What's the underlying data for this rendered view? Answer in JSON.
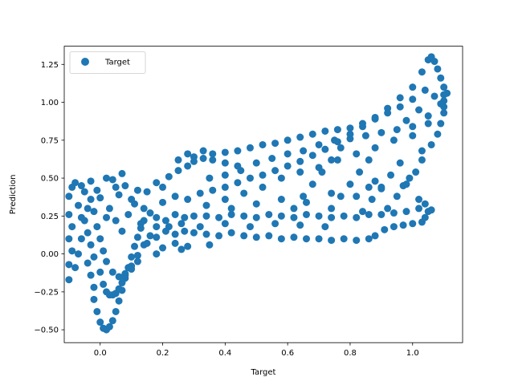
{
  "chart_data": {
    "type": "scatter",
    "title": "",
    "xlabel": "Target",
    "ylabel": "Prediction",
    "xlim": [
      -0.115,
      1.16
    ],
    "ylim": [
      -0.585,
      1.37
    ],
    "xticks": [
      0.0,
      0.2,
      0.4,
      0.6,
      0.8,
      1.0
    ],
    "xtick_labels": [
      "0.0",
      "0.2",
      "0.4",
      "0.6",
      "0.8",
      "1.0"
    ],
    "yticks": [
      -0.5,
      -0.25,
      0.0,
      0.25,
      0.5,
      0.75,
      1.0,
      1.25
    ],
    "ytick_labels": [
      "−0.50",
      "−0.25",
      "0.00",
      "0.25",
      "0.50",
      "0.75",
      "1.00",
      "1.25"
    ],
    "grid": false,
    "legend": {
      "position": "upper-left",
      "entries": [
        "Target"
      ]
    },
    "series": [
      {
        "name": "Target",
        "color": "#1f77b4",
        "points": [
          [
            -0.1,
            0.38
          ],
          [
            -0.09,
            0.44
          ],
          [
            -0.08,
            0.47
          ],
          [
            -0.06,
            0.45
          ],
          [
            -0.05,
            0.41
          ],
          [
            -0.03,
            0.48
          ],
          [
            -0.01,
            0.42
          ],
          [
            0.0,
            0.37
          ],
          [
            0.02,
            0.5
          ],
          [
            0.04,
            0.49
          ],
          [
            0.05,
            0.44
          ],
          [
            0.07,
            0.53
          ],
          [
            -0.1,
            0.26
          ],
          [
            -0.09,
            0.18
          ],
          [
            -0.1,
            0.1
          ],
          [
            -0.09,
            0.02
          ],
          [
            -0.1,
            -0.07
          ],
          [
            -0.1,
            -0.17
          ],
          [
            -0.08,
            -0.09
          ],
          [
            -0.07,
            0.0
          ],
          [
            -0.06,
            0.1
          ],
          [
            -0.05,
            0.22
          ],
          [
            -0.04,
            0.3
          ],
          [
            -0.07,
            0.32
          ],
          [
            -0.06,
            0.24
          ],
          [
            -0.04,
            0.14
          ],
          [
            -0.03,
            0.06
          ],
          [
            -0.02,
            -0.02
          ],
          [
            -0.03,
            0.36
          ],
          [
            -0.02,
            0.28
          ],
          [
            -0.01,
            0.18
          ],
          [
            0.0,
            0.1
          ],
          [
            0.01,
            0.02
          ],
          [
            0.02,
            0.24
          ],
          [
            -0.04,
            -0.06
          ],
          [
            -0.03,
            -0.14
          ],
          [
            -0.02,
            -0.22
          ],
          [
            -0.02,
            -0.3
          ],
          [
            -0.01,
            -0.38
          ],
          [
            0.0,
            -0.45
          ],
          [
            0.01,
            -0.49
          ],
          [
            0.02,
            -0.5
          ],
          [
            0.03,
            -0.48
          ],
          [
            0.04,
            -0.44
          ],
          [
            0.05,
            -0.38
          ],
          [
            0.06,
            -0.31
          ],
          [
            0.07,
            -0.24
          ],
          [
            0.08,
            -0.16
          ],
          [
            0.09,
            -0.09
          ],
          [
            0.1,
            -0.02
          ],
          [
            0.11,
            0.05
          ],
          [
            0.12,
            0.11
          ],
          [
            0.13,
            0.17
          ],
          [
            0.14,
            0.22
          ],
          [
            0.0,
            -0.12
          ],
          [
            0.01,
            -0.2
          ],
          [
            0.02,
            -0.25
          ],
          [
            0.03,
            -0.27
          ],
          [
            0.04,
            -0.27
          ],
          [
            0.05,
            -0.26
          ],
          [
            0.06,
            -0.23
          ],
          [
            0.07,
            -0.19
          ],
          [
            0.08,
            -0.14
          ],
          [
            0.1,
            -0.08
          ],
          [
            0.12,
            -0.01
          ],
          [
            0.14,
            0.06
          ],
          [
            0.16,
            0.12
          ],
          [
            0.18,
            0.18
          ],
          [
            0.02,
            -0.05
          ],
          [
            0.04,
            -0.12
          ],
          [
            0.06,
            -0.15
          ],
          [
            0.08,
            -0.13
          ],
          [
            0.1,
            -0.1
          ],
          [
            0.12,
            -0.05
          ],
          [
            0.03,
            0.3
          ],
          [
            0.05,
            0.22
          ],
          [
            0.07,
            0.15
          ],
          [
            0.09,
            0.26
          ],
          [
            0.11,
            0.33
          ],
          [
            0.13,
            0.2
          ],
          [
            0.06,
            0.39
          ],
          [
            0.08,
            0.45
          ],
          [
            0.1,
            0.36
          ],
          [
            0.12,
            0.42
          ],
          [
            0.14,
            0.3
          ],
          [
            0.15,
            0.41
          ],
          [
            0.18,
            0.47
          ],
          [
            0.2,
            0.44
          ],
          [
            0.22,
            0.51
          ],
          [
            0.25,
            0.55
          ],
          [
            0.28,
            0.58
          ],
          [
            0.3,
            0.61
          ],
          [
            0.33,
            0.63
          ],
          [
            0.36,
            0.62
          ],
          [
            0.4,
            0.6
          ],
          [
            0.44,
            0.58
          ],
          [
            0.16,
            0.27
          ],
          [
            0.18,
            0.24
          ],
          [
            0.21,
            0.22
          ],
          [
            0.24,
            0.26
          ],
          [
            0.27,
            0.24
          ],
          [
            0.3,
            0.25
          ],
          [
            0.34,
            0.25
          ],
          [
            0.38,
            0.24
          ],
          [
            0.42,
            0.26
          ],
          [
            0.46,
            0.25
          ],
          [
            0.5,
            0.24
          ],
          [
            0.54,
            0.26
          ],
          [
            0.58,
            0.25
          ],
          [
            0.62,
            0.24
          ],
          [
            0.66,
            0.26
          ],
          [
            0.7,
            0.25
          ],
          [
            0.74,
            0.24
          ],
          [
            0.78,
            0.25
          ],
          [
            0.82,
            0.24
          ],
          [
            0.86,
            0.26
          ],
          [
            0.9,
            0.26
          ],
          [
            0.94,
            0.27
          ],
          [
            0.98,
            0.28
          ],
          [
            1.02,
            0.3
          ],
          [
            1.05,
            0.28
          ],
          [
            0.15,
            0.07
          ],
          [
            0.18,
            0.11
          ],
          [
            0.21,
            0.15
          ],
          [
            0.24,
            0.13
          ],
          [
            0.27,
            0.15
          ],
          [
            0.3,
            0.14
          ],
          [
            0.34,
            0.13
          ],
          [
            0.38,
            0.12
          ],
          [
            0.42,
            0.14
          ],
          [
            0.46,
            0.12
          ],
          [
            0.5,
            0.11
          ],
          [
            0.54,
            0.12
          ],
          [
            0.58,
            0.1
          ],
          [
            0.62,
            0.11
          ],
          [
            0.66,
            0.1
          ],
          [
            0.7,
            0.1
          ],
          [
            0.74,
            0.09
          ],
          [
            0.78,
            0.1
          ],
          [
            0.82,
            0.09
          ],
          [
            0.86,
            0.1
          ],
          [
            0.88,
            0.12
          ],
          [
            0.91,
            0.16
          ],
          [
            0.94,
            0.18
          ],
          [
            0.97,
            0.19
          ],
          [
            1.0,
            0.2
          ],
          [
            1.03,
            0.21
          ],
          [
            0.18,
            0.0
          ],
          [
            0.2,
            0.04
          ],
          [
            0.24,
            0.07
          ],
          [
            0.28,
            0.05
          ],
          [
            0.26,
            0.03
          ],
          [
            0.35,
            0.06
          ],
          [
            0.2,
            0.34
          ],
          [
            0.24,
            0.38
          ],
          [
            0.28,
            0.36
          ],
          [
            0.32,
            0.4
          ],
          [
            0.36,
            0.42
          ],
          [
            0.4,
            0.44
          ],
          [
            0.44,
            0.47
          ],
          [
            0.48,
            0.5
          ],
          [
            0.52,
            0.52
          ],
          [
            0.56,
            0.55
          ],
          [
            0.6,
            0.58
          ],
          [
            0.64,
            0.61
          ],
          [
            0.68,
            0.65
          ],
          [
            0.72,
            0.69
          ],
          [
            0.76,
            0.74
          ],
          [
            0.8,
            0.79
          ],
          [
            0.84,
            0.84
          ],
          [
            0.88,
            0.9
          ],
          [
            0.92,
            0.96
          ],
          [
            0.96,
            1.03
          ],
          [
            1.0,
            1.1
          ],
          [
            1.03,
            1.2
          ],
          [
            1.05,
            1.28
          ],
          [
            1.06,
            1.3
          ],
          [
            1.07,
            1.27
          ],
          [
            1.08,
            1.22
          ],
          [
            1.09,
            1.16
          ],
          [
            1.1,
            1.1
          ],
          [
            1.11,
            1.06
          ],
          [
            1.1,
            1.01
          ],
          [
            0.25,
            0.62
          ],
          [
            0.28,
            0.66
          ],
          [
            0.3,
            0.64
          ],
          [
            0.33,
            0.68
          ],
          [
            0.36,
            0.66
          ],
          [
            0.4,
            0.67
          ],
          [
            0.44,
            0.68
          ],
          [
            0.48,
            0.7
          ],
          [
            0.52,
            0.72
          ],
          [
            0.56,
            0.73
          ],
          [
            0.6,
            0.75
          ],
          [
            0.64,
            0.77
          ],
          [
            0.68,
            0.79
          ],
          [
            0.72,
            0.81
          ],
          [
            0.76,
            0.82
          ],
          [
            0.8,
            0.83
          ],
          [
            0.84,
            0.86
          ],
          [
            0.88,
            0.89
          ],
          [
            0.92,
            0.93
          ],
          [
            0.96,
            0.97
          ],
          [
            1.0,
            1.02
          ],
          [
            1.04,
            1.08
          ],
          [
            1.07,
            1.04
          ],
          [
            0.35,
            0.5
          ],
          [
            0.4,
            0.52
          ],
          [
            0.45,
            0.55
          ],
          [
            0.5,
            0.6
          ],
          [
            0.55,
            0.63
          ],
          [
            0.6,
            0.66
          ],
          [
            0.65,
            0.68
          ],
          [
            0.7,
            0.72
          ],
          [
            0.75,
            0.75
          ],
          [
            0.8,
            0.76
          ],
          [
            0.85,
            0.78
          ],
          [
            0.9,
            0.8
          ],
          [
            0.95,
            0.82
          ],
          [
            1.0,
            0.84
          ],
          [
            1.05,
            0.86
          ],
          [
            0.4,
            0.36
          ],
          [
            0.46,
            0.4
          ],
          [
            0.52,
            0.44
          ],
          [
            0.58,
            0.5
          ],
          [
            0.64,
            0.54
          ],
          [
            0.7,
            0.57
          ],
          [
            0.76,
            0.62
          ],
          [
            0.82,
            0.66
          ],
          [
            0.88,
            0.7
          ],
          [
            0.94,
            0.75
          ],
          [
            1.0,
            0.78
          ],
          [
            0.62,
            0.3
          ],
          [
            0.65,
            0.38
          ],
          [
            0.68,
            0.46
          ],
          [
            0.71,
            0.54
          ],
          [
            0.74,
            0.62
          ],
          [
            0.77,
            0.7
          ],
          [
            0.74,
            0.3
          ],
          [
            0.77,
            0.38
          ],
          [
            0.8,
            0.46
          ],
          [
            0.83,
            0.54
          ],
          [
            0.86,
            0.62
          ],
          [
            0.84,
            0.28
          ],
          [
            0.87,
            0.36
          ],
          [
            0.9,
            0.44
          ],
          [
            0.93,
            0.52
          ],
          [
            0.96,
            0.6
          ],
          [
            0.92,
            0.3
          ],
          [
            0.95,
            0.38
          ],
          [
            0.98,
            0.46
          ],
          [
            1.01,
            0.54
          ],
          [
            1.03,
            0.62
          ],
          [
            0.86,
            0.44
          ],
          [
            0.88,
            0.48
          ],
          [
            0.9,
            0.43
          ],
          [
            0.97,
            0.45
          ],
          [
            0.99,
            0.5
          ],
          [
            1.02,
            0.36
          ],
          [
            1.04,
            0.33
          ],
          [
            1.06,
            0.29
          ],
          [
            1.04,
            0.24
          ],
          [
            1.08,
            0.79
          ],
          [
            1.09,
            0.86
          ],
          [
            1.1,
            0.93
          ],
          [
            1.1,
            0.97
          ],
          [
            1.06,
            0.72
          ],
          [
            1.03,
            0.68
          ],
          [
            1.1,
            1.05
          ],
          [
            1.09,
            0.99
          ],
          [
            1.05,
            0.91
          ],
          [
            1.02,
            0.95
          ],
          [
            0.98,
            0.88
          ],
          [
            0.32,
            0.18
          ],
          [
            0.4,
            0.2
          ],
          [
            0.48,
            0.18
          ],
          [
            0.56,
            0.2
          ],
          [
            0.64,
            0.19
          ],
          [
            0.72,
            0.18
          ],
          [
            0.22,
            0.18
          ],
          [
            0.26,
            0.2
          ],
          [
            0.34,
            0.32
          ],
          [
            0.42,
            0.3
          ],
          [
            0.5,
            0.33
          ],
          [
            0.58,
            0.36
          ],
          [
            0.66,
            0.34
          ],
          [
            0.74,
            0.4
          ],
          [
            0.82,
            0.38
          ]
        ]
      }
    ]
  }
}
